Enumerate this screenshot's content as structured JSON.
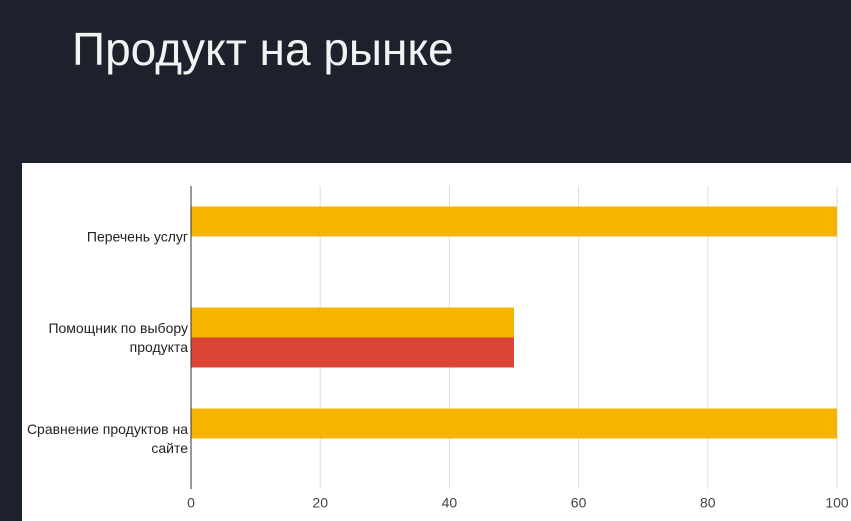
{
  "title": "Продукт на рынке",
  "chart_data": {
    "type": "bar",
    "orientation": "horizontal",
    "categories": [
      "Перечень услуг",
      "Помощник по выбору продукта",
      "Сравнение продуктов на сайте"
    ],
    "series": [
      {
        "color": "#f4b400",
        "values": [
          100,
          50,
          100
        ]
      },
      {
        "color": "#db4437",
        "values": [
          0,
          50,
          0
        ]
      }
    ],
    "xlim": [
      0,
      100
    ],
    "xticks": [
      0,
      20,
      40,
      60,
      80,
      100
    ],
    "grid": true
  }
}
